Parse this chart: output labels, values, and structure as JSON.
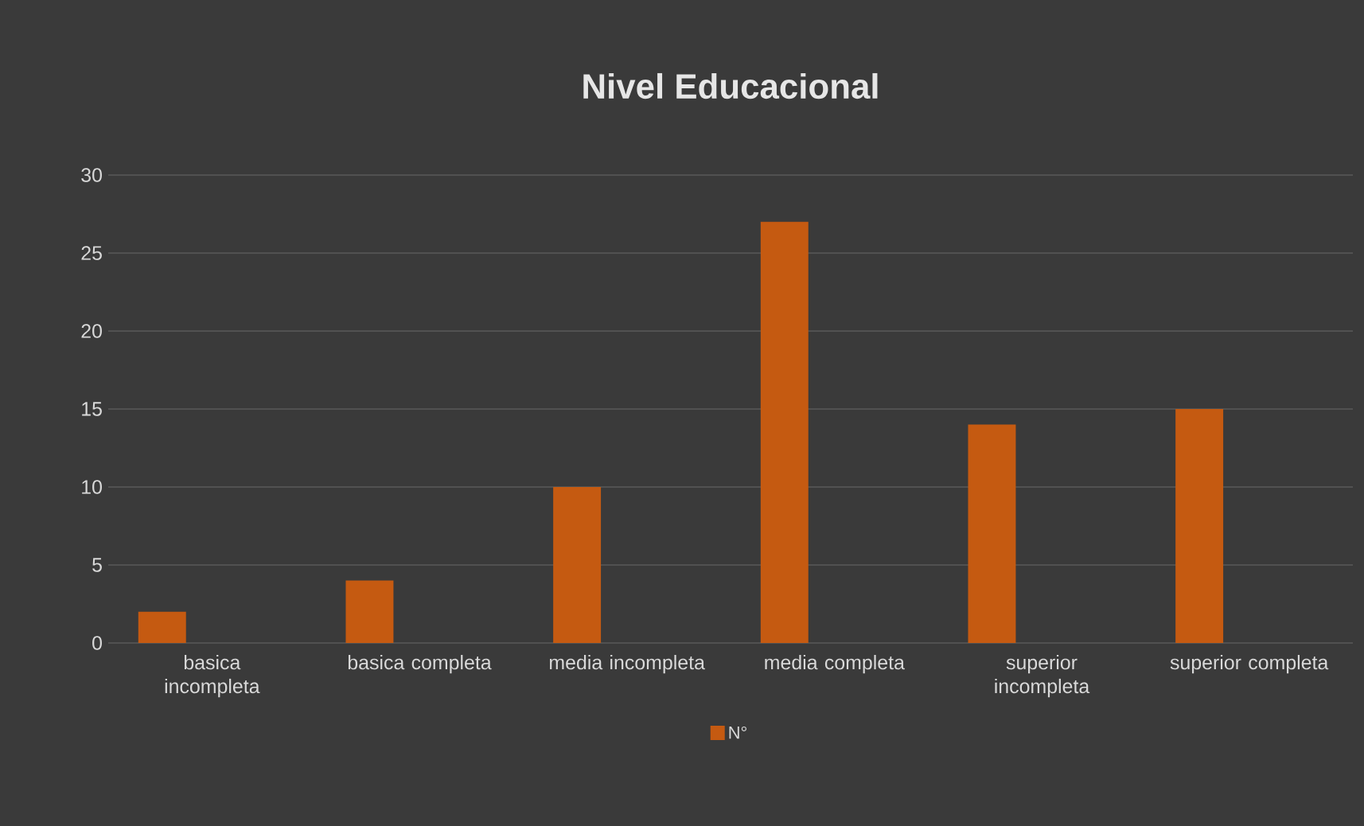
{
  "chart_data": {
    "type": "bar",
    "title": "Nivel Educacional",
    "categories": [
      "basica incompleta",
      "basica completa",
      "media incompleta",
      "media completa",
      "superior incompleta",
      "superior completa"
    ],
    "series": [
      {
        "name": "N°",
        "color": "#c55a11",
        "values": [
          2,
          4,
          10,
          27,
          14,
          15
        ]
      }
    ],
    "ylim": [
      0,
      30
    ],
    "yticks": [
      0,
      5,
      10,
      15,
      20,
      25,
      30
    ],
    "grid": "y",
    "legend": "bottom"
  }
}
